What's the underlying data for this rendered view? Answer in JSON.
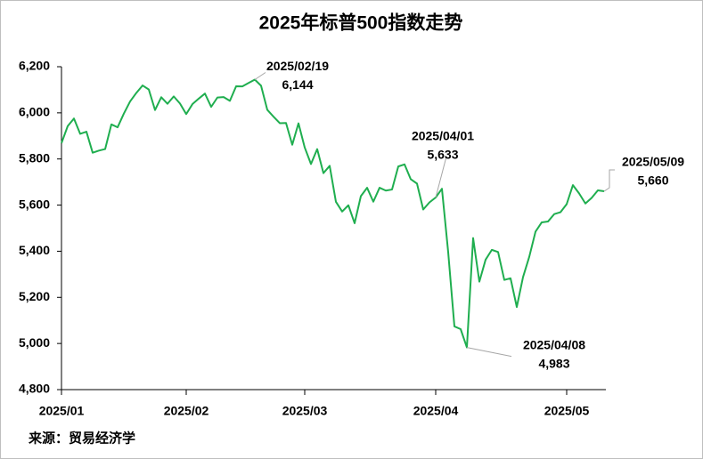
{
  "chart_data": {
    "type": "line",
    "title": "2025年标普500指数走势",
    "source": "来源：贸易经济学",
    "color": "#1fae4f",
    "categories": [
      "2025/01",
      null,
      null,
      null,
      null,
      null,
      null,
      null,
      null,
      null,
      null,
      null,
      null,
      null,
      null,
      null,
      null,
      null,
      null,
      null,
      "2025/02",
      null,
      null,
      null,
      null,
      null,
      null,
      null,
      null,
      null,
      null,
      null,
      null,
      null,
      null,
      null,
      null,
      null,
      null,
      "2025/03",
      null,
      null,
      null,
      null,
      null,
      null,
      null,
      null,
      null,
      null,
      null,
      null,
      null,
      null,
      null,
      null,
      null,
      null,
      null,
      null,
      "2025/04",
      null,
      null,
      null,
      null,
      null,
      null,
      null,
      null,
      null,
      null,
      null,
      null,
      null,
      null,
      null,
      null,
      null,
      null,
      null,
      null,
      "2025/05",
      null,
      null,
      null,
      null,
      null,
      null
    ],
    "values": [
      5868.55,
      5942.47,
      5975.38,
      5909.03,
      5918.25,
      5827.04,
      5836.22,
      5842.91,
      5949.91,
      5937.34,
      5996.66,
      6049.24,
      6086.37,
      6118.71,
      6101.24,
      6012.28,
      6067.7,
      6039.31,
      6071.17,
      6040.53,
      5994.57,
      6037.88,
      6061.48,
      6083.57,
      6025.99,
      6066.44,
      6068.5,
      6051.97,
      6115.07,
      6114.63,
      6129.58,
      6144.15,
      6117.52,
      6013.13,
      5983.25,
      5955.25,
      5956.06,
      5861.57,
      5954.5,
      5849.72,
      5778.15,
      5842.63,
      5738.52,
      5770.2,
      5614.56,
      5572.07,
      5599.3,
      5521.52,
      5638.94,
      5675.12,
      5614.66,
      5675.29,
      5662.89,
      5667.56,
      5767.57,
      5776.65,
      5712.2,
      5693.31,
      5580.94,
      5611.85,
      5633.07,
      5670.97,
      5396.52,
      5074.08,
      5062.25,
      4982.77,
      5456.9,
      5268.05,
      5363.36,
      5405.97,
      5396.63,
      5275.7,
      5282.7,
      5158.2,
      5287.76,
      5375.86,
      5484.77,
      5525.21,
      5528.75,
      5560.83,
      5569.06,
      5604.14,
      5686.67,
      5650.38,
      5606.91,
      5631.28,
      5663.94,
      5659.91
    ],
    "ylim": [
      4800,
      6200
    ],
    "yticks": [
      {
        "value": 4800,
        "label": "4,800"
      },
      {
        "value": 5000,
        "label": "5,000"
      },
      {
        "value": 5200,
        "label": "5,200"
      },
      {
        "value": 5400,
        "label": "5,400"
      },
      {
        "value": 5600,
        "label": "5,600"
      },
      {
        "value": 5800,
        "label": "5,800"
      },
      {
        "value": 6000,
        "label": "6,000"
      },
      {
        "value": 6200,
        "label": "6,200"
      }
    ],
    "grid": false,
    "annotations": [
      {
        "text": "2025/02/19",
        "value": 6144,
        "value_label": "6,144"
      },
      {
        "text": "2025/04/01",
        "value": 5633,
        "value_label": "5,633"
      },
      {
        "text": "2025/04/08",
        "value": 4983,
        "value_label": "4,983"
      },
      {
        "text": "2025/05/09",
        "value": 5660,
        "value_label": "5,660"
      }
    ]
  }
}
